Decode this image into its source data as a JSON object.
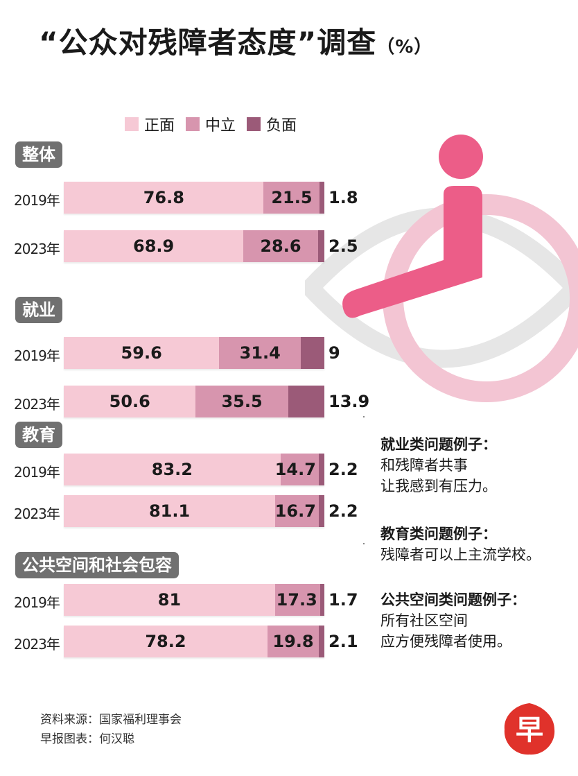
{
  "title": "“公众对残障者态度”调查",
  "title_unit": "（%）",
  "colors": {
    "positive": "#f6c9d5",
    "neutral": "#d795ae",
    "negative": "#9b5a78",
    "accent": "#ec5d88",
    "eye": "#e6e6e6"
  },
  "chart_data": {
    "type": "bar",
    "stacked": true,
    "orientation": "horizontal",
    "title": "“公众对残障者态度”调查（%）",
    "unit": "%",
    "legend": {
      "position": "top",
      "items": [
        "正面",
        "中立",
        "负面"
      ]
    },
    "series_names": [
      "正面",
      "中立",
      "负面"
    ],
    "groups": [
      {
        "label": "整体",
        "rows": [
          {
            "year": "2019年",
            "values": [
              76.8,
              21.5,
              1.8
            ],
            "labels": [
              "76.8",
              "21.5",
              "1.8"
            ]
          },
          {
            "year": "2023年",
            "values": [
              68.9,
              28.6,
              2.5
            ],
            "labels": [
              "68.9",
              "28.6",
              "2.5"
            ]
          }
        ]
      },
      {
        "label": "就业",
        "rows": [
          {
            "year": "2019年",
            "values": [
              59.6,
              31.4,
              9
            ],
            "labels": [
              "59.6",
              "31.4",
              "9"
            ]
          },
          {
            "year": "2023年",
            "values": [
              50.6,
              35.5,
              13.9
            ],
            "labels": [
              "50.6",
              "35.5",
              "13.9"
            ]
          }
        ]
      },
      {
        "label": "教育",
        "rows": [
          {
            "year": "2019年",
            "values": [
              83.2,
              14.7,
              2.2
            ],
            "labels": [
              "83.2",
              "14.7",
              "2.2"
            ]
          },
          {
            "year": "2023年",
            "values": [
              81.1,
              16.7,
              2.2
            ],
            "labels": [
              "81.1",
              "16.7",
              "2.2"
            ]
          }
        ]
      },
      {
        "label": "公共空间和社会包容",
        "rows": [
          {
            "year": "2019年",
            "values": [
              81,
              17.3,
              1.7
            ],
            "labels": [
              "81",
              "17.3",
              "1.7"
            ]
          },
          {
            "year": "2023年",
            "values": [
              78.2,
              19.8,
              2.1
            ],
            "labels": [
              "78.2",
              "19.8",
              "2.1"
            ]
          }
        ]
      }
    ]
  },
  "notes": [
    {
      "heading": "就业类问题例子：",
      "lines": [
        "和残障者共事",
        "让我感到有压力。"
      ]
    },
    {
      "heading": "教育类问题例子：",
      "lines": [
        "残障者可以上主流学校。"
      ]
    },
    {
      "heading": "公共空间类问题例子：",
      "lines": [
        "所有社区空间",
        "应方便残障者使用。"
      ]
    }
  ],
  "source": {
    "line1": "资料来源：国家福利理事会",
    "line2": "早报图表：何汉聪"
  },
  "logo": {
    "char": "早",
    "icon": "zaobao-logo-icon"
  },
  "illustration": {
    "icon": "wheelchair-eye-icon"
  }
}
